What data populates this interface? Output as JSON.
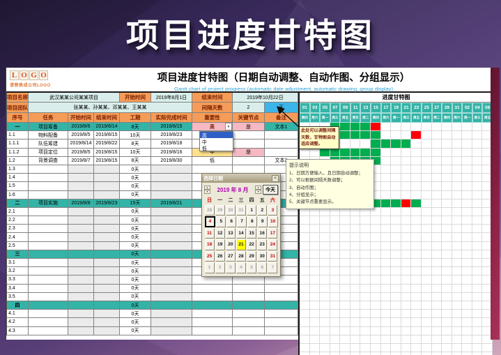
{
  "banner": {
    "title": "项目进度甘特图"
  },
  "sheet": {
    "logo": {
      "letters": [
        "L",
        "O",
        "G",
        "O"
      ],
      "caption": "请替换成公司LOGO"
    },
    "title": "项目进度甘特图（日期自动调整、自动作图、分组显示）",
    "subtitle": "Gantt chart of project progress (automatic date adjustment, automatic drawing, group display)",
    "info": {
      "project_name_label": "项目名称",
      "project_name": "武汉某某公司某某项目",
      "start_label": "开始时间",
      "start_date": "2019年8月1日",
      "end_label": "结束时间",
      "end_date": "2019年10月22日",
      "team_label": "项目团队",
      "team": "张某某、孙某某、邓某某、王某某",
      "interval_label": "间隔天数",
      "interval_value": "2",
      "interval_unit": "天"
    },
    "columns": [
      "序号",
      "任务",
      "开始时间",
      "结束时间",
      "工期",
      "实际完成时间",
      "重要性",
      "关键节点",
      "备注"
    ],
    "rows": [
      {
        "no": "一",
        "task": "项目筹备",
        "start": "2019/8/6",
        "end": "2019/8/14",
        "dur": "8天",
        "actual": "2019/8/15",
        "imp": "高",
        "imp_bg": "pink",
        "key": "是",
        "remark": "文本1",
        "group": true
      },
      {
        "no": "1.1",
        "task": "物料配备",
        "start": "2019/8/5",
        "end": "2019/8/15",
        "dur": "10天",
        "actual": "2019/8/23"
      },
      {
        "no": "1.1.1",
        "task": "队伍筹建",
        "start": "2019/8/14",
        "end": "2019/8/22",
        "dur": "8天",
        "actual": "2019/8/18",
        "imp": "中"
      },
      {
        "no": "1.1.2",
        "task": "项目定位",
        "start": "2019/8/5",
        "end": "2019/8/15",
        "dur": "10天",
        "actual": "2019/8/16",
        "imp": "中",
        "imp_bg": "yellow",
        "key": "是"
      },
      {
        "no": "1.2",
        "task": "背景调查",
        "start": "2019/8/7",
        "end": "2019/8/15",
        "dur": "8天",
        "actual": "2019/8/30",
        "imp": "低",
        "remark": "文本2"
      },
      {
        "no": "1.3",
        "dur": "0天"
      },
      {
        "no": "1.4",
        "dur": "0天"
      },
      {
        "no": "1.5",
        "dur": "0天"
      },
      {
        "no": "1.6",
        "dur": "0天"
      },
      {
        "no": "二",
        "task": "项目实施",
        "start": "2019/8/8",
        "end": "2019/8/23",
        "dur": "15天",
        "actual": "2019/8/21",
        "group": true
      },
      {
        "no": "2.1",
        "dur": "0天"
      },
      {
        "no": "2.2",
        "dur": "0天"
      },
      {
        "no": "2.3",
        "dur": "0天"
      },
      {
        "no": "2.4",
        "dur": "0天"
      },
      {
        "no": "2.5",
        "dur": "0天"
      },
      {
        "no": "三",
        "dur": "0天",
        "group": true
      },
      {
        "no": "3.1",
        "dur": "0天"
      },
      {
        "no": "3.2",
        "dur": "0天"
      },
      {
        "no": "3.3",
        "dur": "0天"
      },
      {
        "no": "3.4",
        "dur": "0天"
      },
      {
        "no": "3.5",
        "dur": "0天"
      },
      {
        "no": "四",
        "dur": "0天",
        "group": true
      },
      {
        "no": "4.1",
        "dur": "0天"
      },
      {
        "no": "4.2",
        "dur": "0天"
      },
      {
        "no": "4.3",
        "dur": "0天"
      }
    ],
    "gantt": {
      "title": "进度甘特图",
      "dates": [
        "01",
        "03",
        "05",
        "07",
        "09",
        "11",
        "13",
        "15",
        "17",
        "19",
        "21",
        "23",
        "25",
        "27",
        "29",
        "31",
        "02",
        "04",
        "06"
      ],
      "weekdays": [
        "周四",
        "周六",
        "周一",
        "周三",
        "周五",
        "周日",
        "周二",
        "周四",
        "周六",
        "周一",
        "周三",
        "周五",
        "周日",
        "周二",
        "周四",
        "周六",
        "周一",
        "周三",
        "周五"
      ],
      "bars": [
        {
          "row": 0,
          "green": [
            4,
            5,
            6,
            7
          ],
          "red": [
            8
          ]
        },
        {
          "row": 1,
          "green": [
            3,
            4,
            5,
            6,
            7,
            8
          ],
          "red": [
            12
          ]
        },
        {
          "row": 2,
          "green": [
            8,
            9,
            10,
            11
          ],
          "red": []
        },
        {
          "row": 3,
          "green": [
            3,
            4,
            5,
            6,
            7,
            8
          ],
          "red": []
        },
        {
          "row": 4,
          "green": [
            4,
            5,
            6,
            7,
            8
          ],
          "red": []
        },
        {
          "row": 9,
          "green": [
            5,
            6,
            7,
            8,
            9,
            10,
            12
          ],
          "red": [
            11
          ]
        }
      ],
      "green_color": "#00AD4F",
      "red_color": "#FF0000"
    },
    "dropdown": {
      "options": [
        "高",
        "中",
        "低"
      ],
      "selected_index": 0
    },
    "tooltip1": {
      "lines": [
        "此处可以调整间隔",
        "天数，甘特图自动",
        "适应调整。"
      ]
    },
    "tooltip2": {
      "title": "提示说明",
      "lines": [
        "1、日期方便输入，且日期自动调整；",
        "2、可以根据间隔天数调整；",
        "3、自动作图；",
        "4、分组显示；",
        "5、关键节点重要显示。"
      ]
    },
    "datepicker": {
      "title": "选择日期",
      "close": "×",
      "date_text": "2019 年  8 月",
      "today_label": "今天",
      "weekdays": [
        "日",
        "一",
        "二",
        "三",
        "四",
        "五",
        "六"
      ],
      "days": [
        [
          {
            "d": "28",
            "out": true
          },
          {
            "d": "29",
            "out": true
          },
          {
            "d": "30",
            "out": true
          },
          {
            "d": "31",
            "out": true
          },
          {
            "d": "1"
          },
          {
            "d": "2"
          },
          {
            "d": "3",
            "we": true
          }
        ],
        [
          {
            "d": "4",
            "we": true,
            "sel": true
          },
          {
            "d": "5"
          },
          {
            "d": "6"
          },
          {
            "d": "7"
          },
          {
            "d": "8"
          },
          {
            "d": "9"
          },
          {
            "d": "10",
            "we": true
          }
        ],
        [
          {
            "d": "11",
            "we": true
          },
          {
            "d": "12"
          },
          {
            "d": "13"
          },
          {
            "d": "14"
          },
          {
            "d": "15"
          },
          {
            "d": "16"
          },
          {
            "d": "17",
            "we": true
          }
        ],
        [
          {
            "d": "18",
            "we": true
          },
          {
            "d": "19"
          },
          {
            "d": "20"
          },
          {
            "d": "21",
            "today": true
          },
          {
            "d": "22"
          },
          {
            "d": "23"
          },
          {
            "d": "24",
            "we": true
          }
        ],
        [
          {
            "d": "25",
            "we": true
          },
          {
            "d": "26"
          },
          {
            "d": "27"
          },
          {
            "d": "28"
          },
          {
            "d": "29"
          },
          {
            "d": "30"
          },
          {
            "d": "31",
            "we": true
          }
        ],
        [
          {
            "d": "1",
            "out": true
          },
          {
            "d": "2",
            "out": true
          },
          {
            "d": "3",
            "out": true
          },
          {
            "d": "4",
            "out": true
          },
          {
            "d": "5",
            "out": true
          },
          {
            "d": "6",
            "out": true
          },
          {
            "d": "7",
            "out": true
          }
        ]
      ]
    },
    "colors": {
      "teal": "#34B3A7",
      "orange": "#F59C58",
      "pink": "#F5B9C3",
      "yellow": "#FFE18C",
      "blue": "#3CB6E9"
    }
  }
}
